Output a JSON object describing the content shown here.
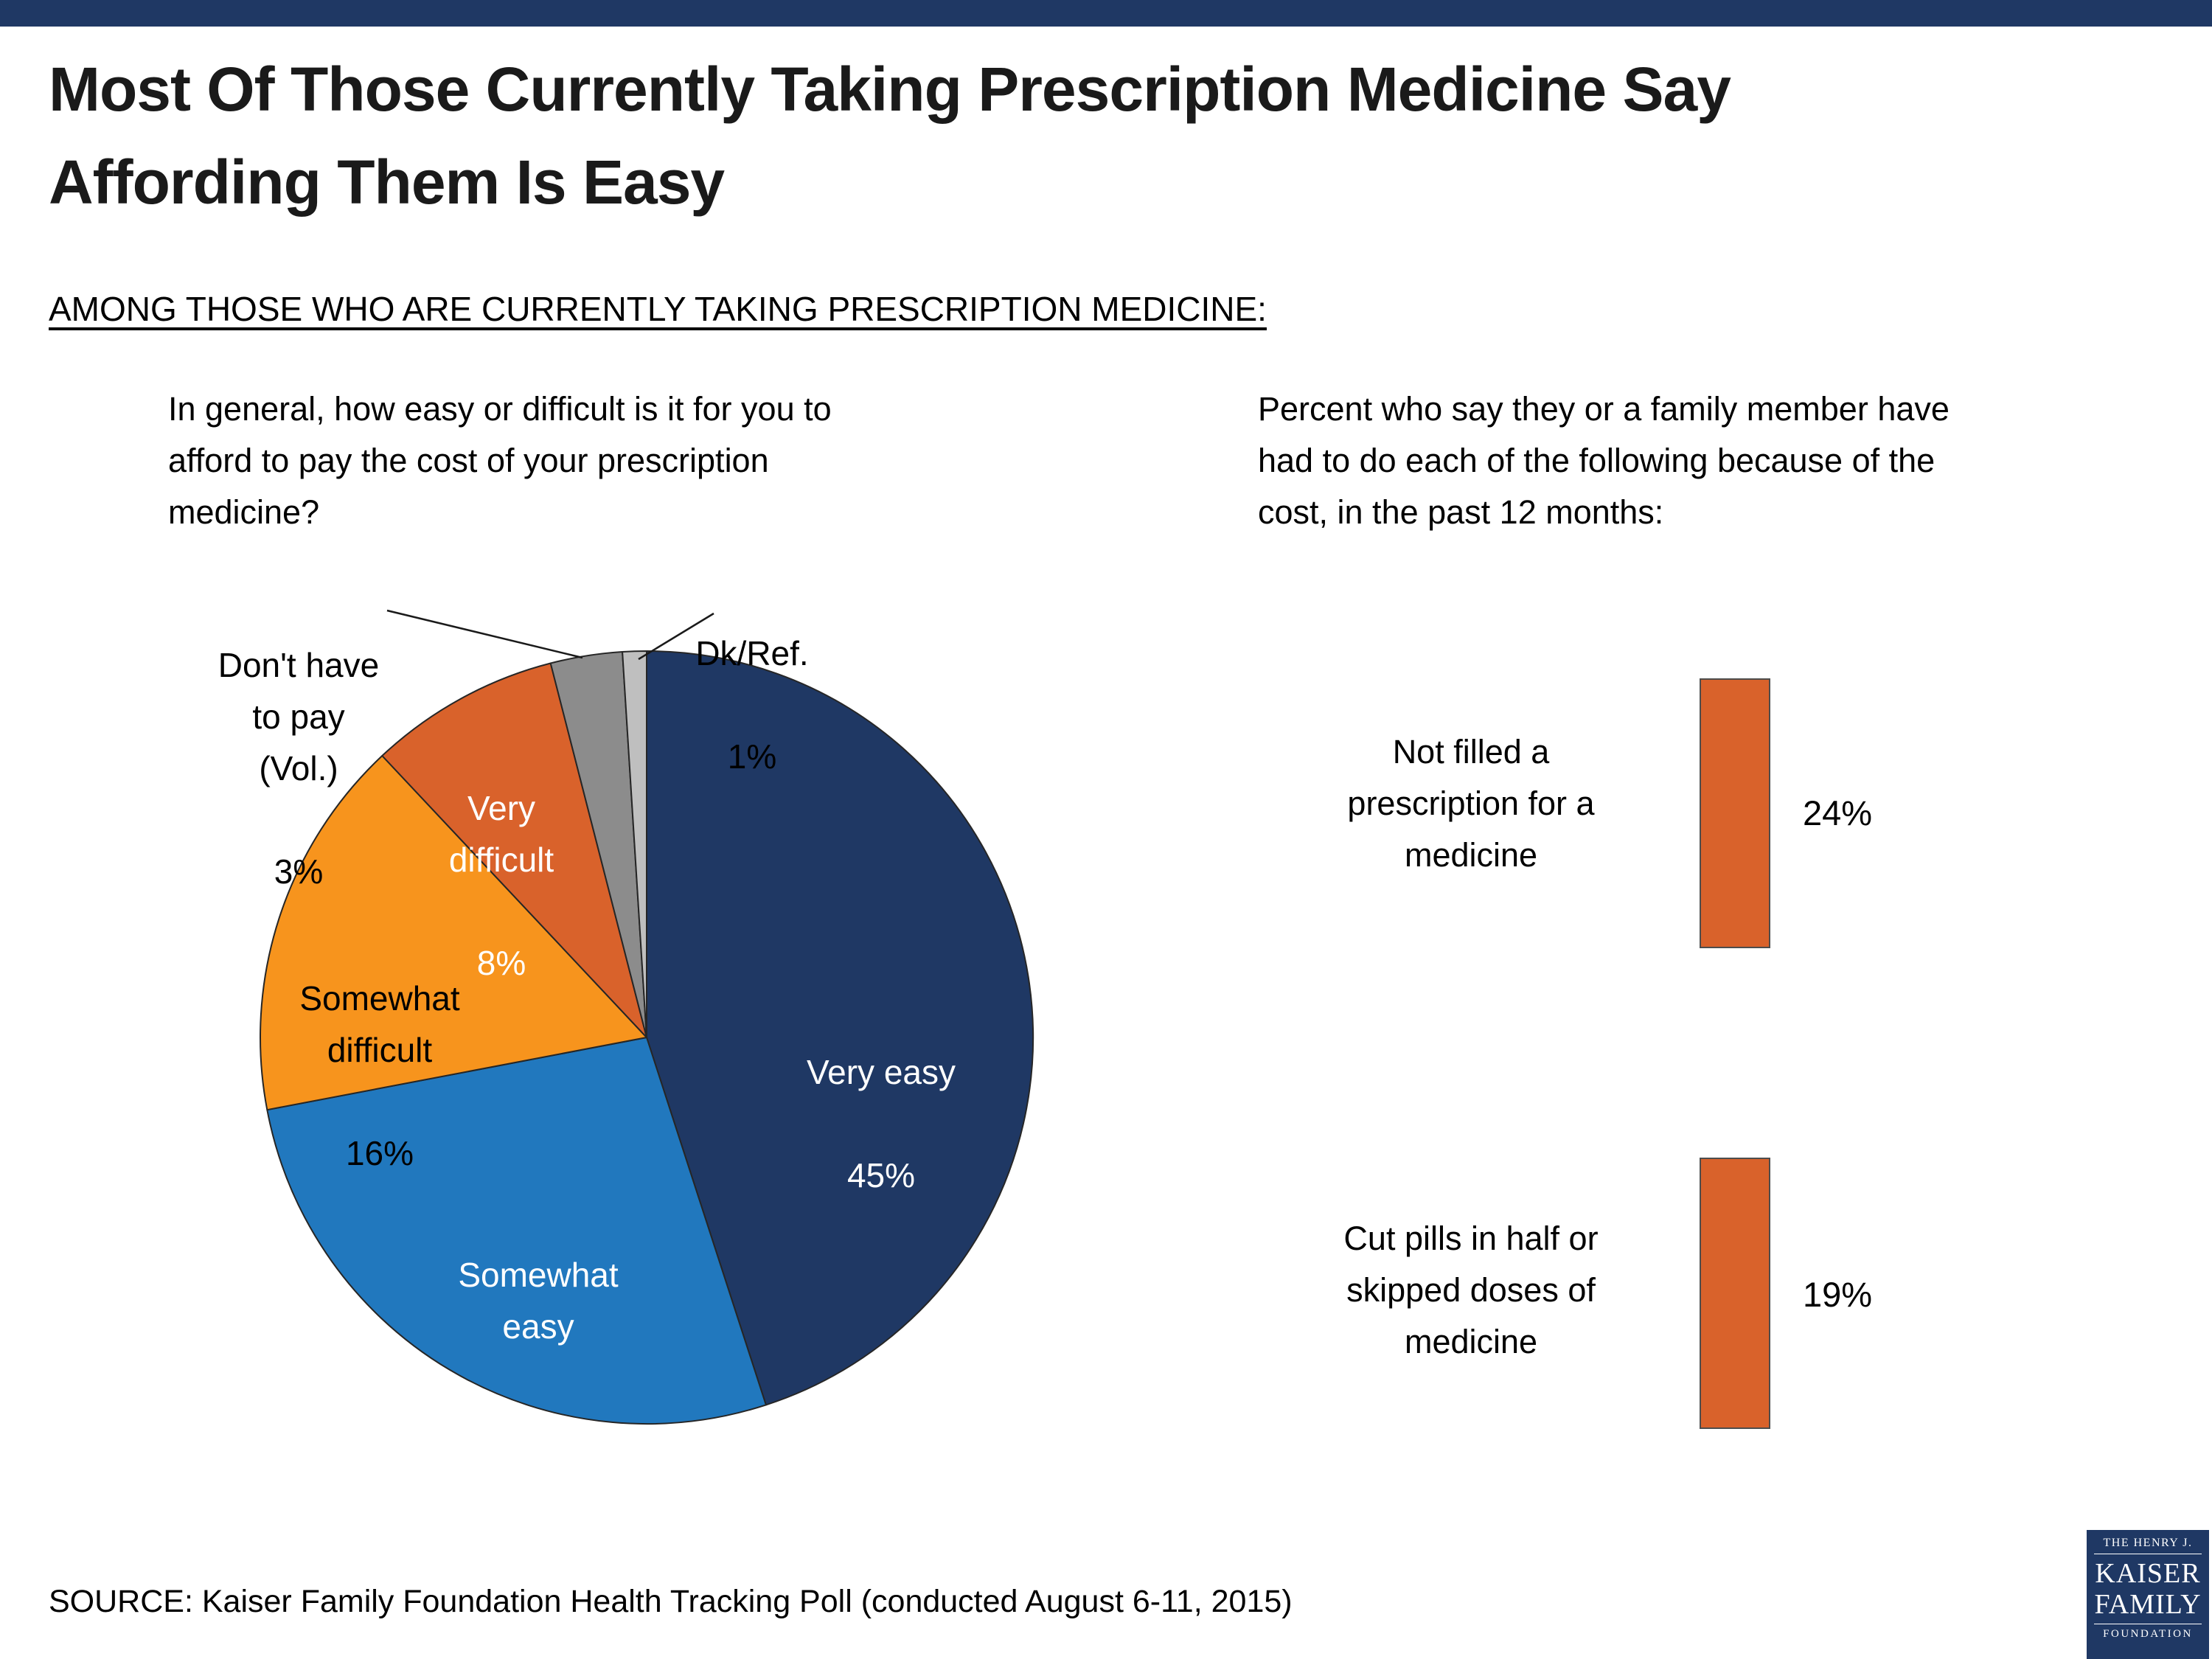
{
  "page": {
    "title_lines": [
      "Most Of Those Currently Taking Prescription Medicine Say",
      "Affording Them Is Easy"
    ],
    "section_heading": "AMONG THOSE WHO ARE CURRENTLY TAKING PRESCRIPTION MEDICINE:",
    "source": "SOURCE: Kaiser Family Foundation Health Tracking Poll (conducted August 6-11, 2015)",
    "accent_navy": "#1F3864",
    "accent_orange": "#D9622B"
  },
  "logo": {
    "line1": "THE HENRY J.",
    "line2": "KAISER",
    "line3": "FAMILY",
    "line4": "FOUNDATION"
  },
  "chart_data": [
    {
      "type": "pie",
      "title": "In general, how easy or difficult is it for you to afford to pay the cost of your prescription medicine?",
      "title_lines": [
        "In general, how easy or difficult is it for you to",
        "afford to pay the cost of your prescription",
        "medicine?"
      ],
      "unit": "%",
      "start_angle_deg": 0,
      "direction": "clockwise",
      "slices": [
        {
          "label": "Very easy",
          "label_lines": [
            "Very easy"
          ],
          "value": 45,
          "value_label": "45%",
          "color": "#1F3864"
        },
        {
          "label": "Somewhat easy",
          "label_lines": [
            "Somewhat",
            "easy"
          ],
          "value": 27,
          "value_label": "27%",
          "color": "#2178BE"
        },
        {
          "label": "Somewhat difficult",
          "label_lines": [
            "Somewhat",
            "difficult"
          ],
          "value": 16,
          "value_label": "16%",
          "color": "#F7941D"
        },
        {
          "label": "Very difficult",
          "label_lines": [
            "Very",
            "difficult"
          ],
          "value": 8,
          "value_label": "8%",
          "color": "#D9622B"
        },
        {
          "label": "Don't have to pay (Vol.)",
          "label_lines": [
            "Don't have",
            "to pay",
            "(Vol.)"
          ],
          "value": 3,
          "value_label": "3%",
          "color": "#8C8C8C"
        },
        {
          "label": "Dk/Ref.",
          "label_lines": [
            "Dk/Ref."
          ],
          "value": 1,
          "value_label": "1%",
          "color": "#BFBFBF"
        }
      ]
    },
    {
      "type": "bar",
      "orientation": "vertical",
      "title": "Percent who say they or a family member have had to do each of the following because of the cost, in the past 12 months:",
      "title_lines": [
        "Percent who say they or a family member have",
        "had to do each of the following because of the",
        "cost, in the past 12 months:"
      ],
      "categories": [
        "Not filled a prescription for a medicine",
        "Cut pills in half or skipped doses of medicine"
      ],
      "category_lines": [
        [
          "Not filled a",
          "prescription for a",
          "medicine"
        ],
        [
          "Cut pills in half or",
          "skipped doses of",
          "medicine"
        ]
      ],
      "values": [
        24,
        19
      ],
      "value_labels": [
        "24%",
        "19%"
      ],
      "bar_color": "#D9622B",
      "unit": "%"
    }
  ]
}
